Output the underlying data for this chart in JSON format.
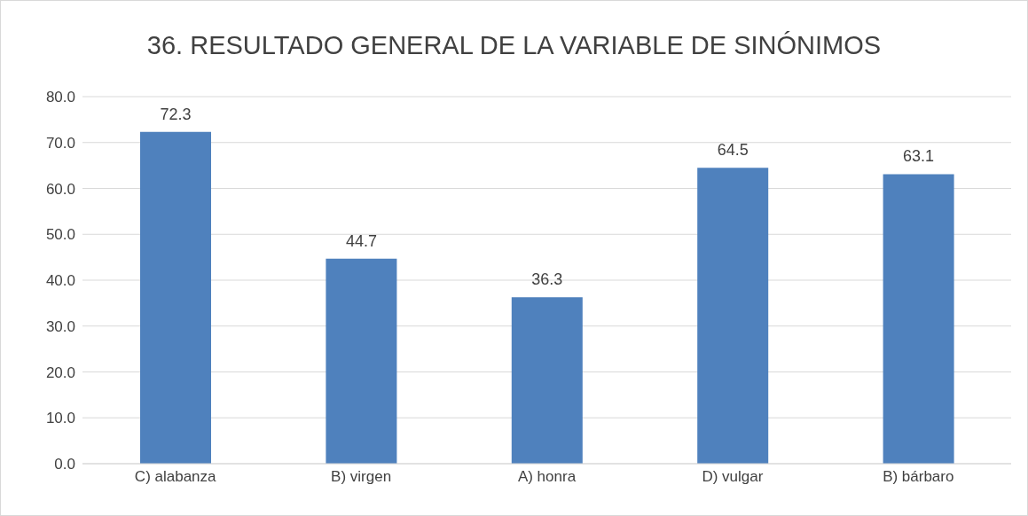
{
  "chart_data": {
    "type": "bar",
    "title": "36. RESULTADO GENERAL DE LA VARIABLE DE SINÓNIMOS",
    "categories": [
      "C) alabanza",
      "B) virgen",
      "A) honra",
      "D) vulgar",
      "B) bárbaro"
    ],
    "values": [
      72.3,
      44.7,
      36.3,
      64.5,
      63.1
    ],
    "color": "#4f81bd",
    "ylim": [
      0,
      80
    ],
    "yticks": [
      {
        "value": 0,
        "label": "0.0"
      },
      {
        "value": 10,
        "label": "10.0"
      },
      {
        "value": 20,
        "label": "20.0"
      },
      {
        "value": 30,
        "label": "30.0"
      },
      {
        "value": 40,
        "label": "40.0"
      },
      {
        "value": 50,
        "label": "50.0"
      },
      {
        "value": 60,
        "label": "60.0"
      },
      {
        "value": 70,
        "label": "70.0"
      },
      {
        "value": 80,
        "label": "80.0"
      }
    ],
    "grid": "y",
    "data_labels": true
  }
}
